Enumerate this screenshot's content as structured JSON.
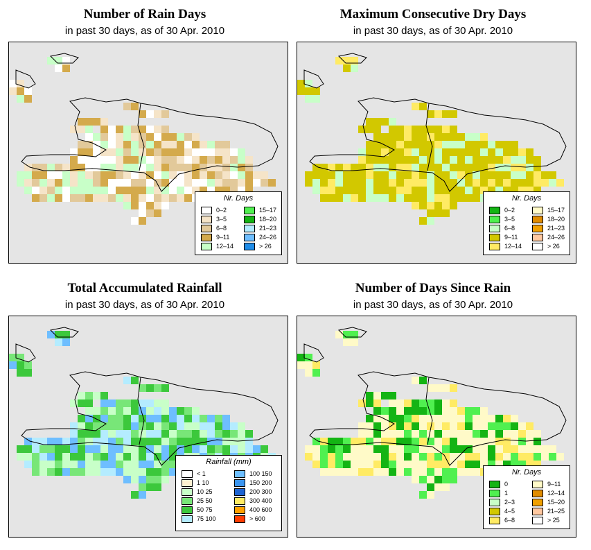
{
  "panels": [
    {
      "title": "Number of Rain Days",
      "subtitle": "in past 30 days, as of  30 Apr. 2010",
      "legend": {
        "title": "Nr. Days",
        "columns": 2,
        "items": [
          {
            "label": "0–2",
            "color": "#ffffff"
          },
          {
            "label": "3–5",
            "color": "#f5e4c8"
          },
          {
            "label": "6–8",
            "color": "#e2c99a"
          },
          {
            "label": "9–11",
            "color": "#d4aa4c"
          },
          {
            "label": "12–14",
            "color": "#c8ffc8"
          },
          {
            "label": "15–17",
            "color": "#50f050"
          },
          {
            "label": "18–20",
            "color": "#14b414"
          },
          {
            "label": "21–23",
            "color": "#b4ecff"
          },
          {
            "label": "24–26",
            "color": "#6ebeff"
          },
          {
            "label": "> 26",
            "color": "#1e8ce8"
          }
        ]
      },
      "cell_colors": [
        "#f5e4c8",
        "#e2c99a",
        "#d4aa4c",
        "#ffffff",
        "#c8ffc8"
      ]
    },
    {
      "title": "Maximum Consecutive Dry Days",
      "subtitle": "in past 30 days, as of  30 Apr. 2010",
      "legend": {
        "title": "Nr. Days",
        "columns": 2,
        "items": [
          {
            "label": "0–2",
            "color": "#14b414"
          },
          {
            "label": "3–5",
            "color": "#50f050"
          },
          {
            "label": "6–8",
            "color": "#c8ffc8"
          },
          {
            "label": "9–11",
            "color": "#d2c800"
          },
          {
            "label": "12–14",
            "color": "#ffeb64"
          },
          {
            "label": "15–17",
            "color": "#fffac8"
          },
          {
            "label": "18–20",
            "color": "#e08c00"
          },
          {
            "label": "21–23",
            "color": "#f0a000"
          },
          {
            "label": "24–26",
            "color": "#ffc8a0"
          },
          {
            "label": "> 26",
            "color": "#ffffff"
          }
        ]
      },
      "cell_colors": [
        "#d2c800",
        "#d2c800",
        "#d2c800",
        "#c8ffc8",
        "#ffeb64"
      ]
    },
    {
      "title": "Total Accumulated Rainfall",
      "subtitle": "in past 30 days, as of  30 Apr. 2010",
      "legend": {
        "title": "Rainfall (mm)",
        "columns": 2,
        "items": [
          {
            "label": "< 1",
            "color": "#ffffff"
          },
          {
            "label": "1    10",
            "color": "#fff0d2"
          },
          {
            "label": "10    25",
            "color": "#c8ffc8"
          },
          {
            "label": "25    50",
            "color": "#78e678"
          },
          {
            "label": "50    75",
            "color": "#3cc83c"
          },
          {
            "label": "75   100",
            "color": "#b4ecff"
          },
          {
            "label": "100   150",
            "color": "#6ebeff"
          },
          {
            "label": "150   200",
            "color": "#3c96f0"
          },
          {
            "label": "200   300",
            "color": "#1e64d2"
          },
          {
            "label": "300   400",
            "color": "#ffeb64"
          },
          {
            "label": "400   600",
            "color": "#ffa000"
          },
          {
            "label": "> 600",
            "color": "#ff3c00"
          }
        ]
      },
      "cell_colors": [
        "#78e678",
        "#3cc83c",
        "#b4ecff",
        "#6ebeff",
        "#c8ffc8"
      ]
    },
    {
      "title": "Number of Days Since Rain",
      "subtitle": "in past 30 days, as of  30 Apr. 2010",
      "legend": {
        "title": "Nr. Days",
        "columns": 2,
        "items": [
          {
            "label": "0",
            "color": "#14b414"
          },
          {
            "label": "1",
            "color": "#50f050"
          },
          {
            "label": "2–3",
            "color": "#c8ffc8"
          },
          {
            "label": "4–5",
            "color": "#d2c800"
          },
          {
            "label": "6–8",
            "color": "#ffeb64"
          },
          {
            "label": "9–11",
            "color": "#fffac8"
          },
          {
            "label": "12–14",
            "color": "#e08c00"
          },
          {
            "label": "15–20",
            "color": "#f0a000"
          },
          {
            "label": "21–25",
            "color": "#ffc8a0"
          },
          {
            "label": "> 25",
            "color": "#ffffff"
          }
        ]
      },
      "cell_colors": [
        "#fffac8",
        "#fffac8",
        "#14b414",
        "#50f050",
        "#ffeb64"
      ]
    }
  ]
}
